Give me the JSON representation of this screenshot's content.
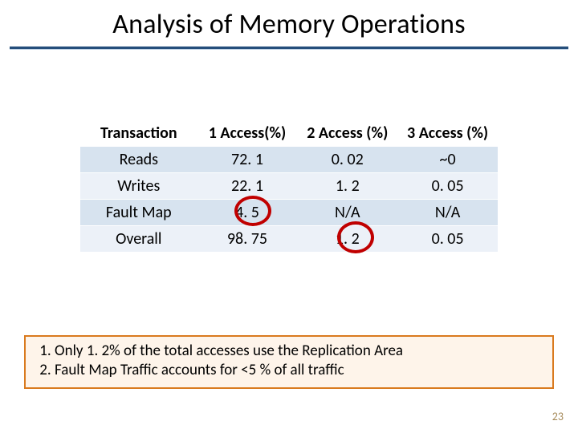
{
  "title": "Analysis of Memory Operations",
  "colors": {
    "rule_top": "#254e7b",
    "rule_bottom": "#b9cde2",
    "row_odd": "#d7e3ef",
    "row_even": "#ecf1f8",
    "circle_stroke": "#c00000",
    "note_bg": "#fef4ea",
    "note_border": "#d97a1e",
    "page_num": "#a68a5a"
  },
  "table": {
    "columns": [
      "Transaction",
      "1 Access(%)",
      "2 Access (%)",
      "3 Access (%)"
    ],
    "rows": [
      [
        "Reads",
        "72. 1",
        "0. 02",
        "~0"
      ],
      [
        "Writes",
        "22. 1",
        "1. 2",
        "0. 05"
      ],
      [
        "Fault Map",
        "4. 5",
        "N/A",
        "N/A"
      ],
      [
        "Overall",
        "98. 75",
        "1. 2",
        "0. 05"
      ]
    ],
    "header_fontsize": 20,
    "cell_fontsize": 20,
    "col_widths_pct": [
      28,
      24,
      24,
      24
    ]
  },
  "circles": [
    {
      "row": 2,
      "col": 1,
      "value": "4. 5"
    },
    {
      "row": 3,
      "col": 2,
      "value": "1. 2"
    }
  ],
  "notes": [
    "Only 1. 2% of the total accesses use the Replication Area",
    "Fault Map Traffic accounts for <5 % of all traffic"
  ],
  "page_number": "23"
}
